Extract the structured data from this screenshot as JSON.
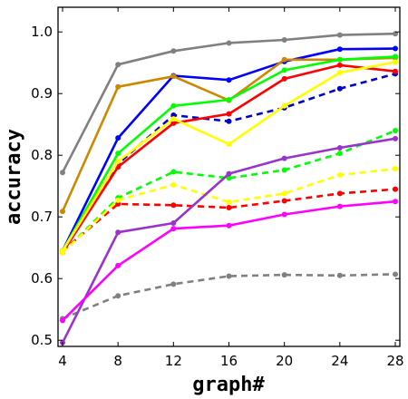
{
  "chart_data": {
    "type": "line",
    "xlabel": "graph#",
    "ylabel": "accuracy",
    "x": [
      4,
      8,
      12,
      16,
      20,
      24,
      28
    ],
    "xlim": [
      4,
      28
    ],
    "ylim": [
      0.49,
      1.04
    ],
    "yticks": [
      0.5,
      0.6,
      0.7,
      0.8,
      0.9,
      1.0
    ],
    "ytick_labels": [
      "0.5",
      "0.6",
      "0.7",
      "0.8",
      "0.9",
      "1.0"
    ],
    "grid": false,
    "legend": "none",
    "series": [
      {
        "color": "#808080",
        "dash": "solid",
        "values": [
          0.772,
          0.947,
          0.969,
          0.982,
          0.987,
          0.995,
          0.997
        ]
      },
      {
        "color": "#808080",
        "dash": "dashed",
        "values": [
          0.535,
          0.572,
          0.591,
          0.604,
          0.606,
          0.605,
          0.607
        ]
      },
      {
        "color": "#0000ff",
        "dash": "solid",
        "values": [
          0.645,
          0.828,
          0.929,
          0.922,
          0.952,
          0.972,
          0.973
        ]
      },
      {
        "color": "#0000cc",
        "dash": "dashed",
        "values": [
          0.645,
          0.786,
          0.865,
          0.855,
          0.877,
          0.908,
          0.932
        ]
      },
      {
        "color": "#cc8800",
        "dash": "solid",
        "values": [
          0.709,
          0.911,
          0.928,
          0.889,
          0.955,
          0.955,
          0.958
        ]
      },
      {
        "color": "#00ff00",
        "dash": "solid",
        "values": [
          0.645,
          0.803,
          0.88,
          0.89,
          0.938,
          0.955,
          0.96
        ]
      },
      {
        "color": "#00ff00",
        "dash": "dashed",
        "values": [
          0.642,
          0.731,
          0.773,
          0.763,
          0.776,
          0.803,
          0.84
        ]
      },
      {
        "color": "#ff0000",
        "dash": "solid",
        "values": [
          0.642,
          0.781,
          0.852,
          0.867,
          0.924,
          0.946,
          0.936
        ]
      },
      {
        "color": "#ff0000",
        "dash": "dashed",
        "values": [
          0.645,
          0.721,
          0.719,
          0.715,
          0.726,
          0.738,
          0.745
        ]
      },
      {
        "color": "#ffff00",
        "dash": "solid",
        "values": [
          0.645,
          0.79,
          0.859,
          0.818,
          0.88,
          0.934,
          0.951
        ]
      },
      {
        "color": "#ffff00",
        "dash": "dashed",
        "values": [
          0.642,
          0.727,
          0.752,
          0.724,
          0.738,
          0.768,
          0.778
        ]
      },
      {
        "color": "#9933cc",
        "dash": "solid",
        "values": [
          0.496,
          0.675,
          0.69,
          0.77,
          0.795,
          0.812,
          0.827
        ]
      },
      {
        "color": "#ff00ff",
        "dash": "solid",
        "values": [
          0.532,
          0.621,
          0.681,
          0.686,
          0.704,
          0.717,
          0.725
        ]
      }
    ]
  }
}
